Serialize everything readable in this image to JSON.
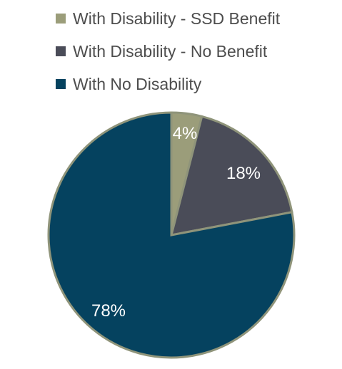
{
  "chart_data": {
    "type": "pie",
    "title": "",
    "legend_position": "top",
    "categories": [
      "With Disability - SSD Benefit",
      "With Disability - No Benefit",
      "With No Disability"
    ],
    "values": [
      4,
      18,
      78
    ],
    "labels": [
      "4%",
      "18%",
      "78%"
    ],
    "colors": [
      "#9b9d7a",
      "#4a4c58",
      "#05425f"
    ],
    "border_color": "#8f947a"
  }
}
